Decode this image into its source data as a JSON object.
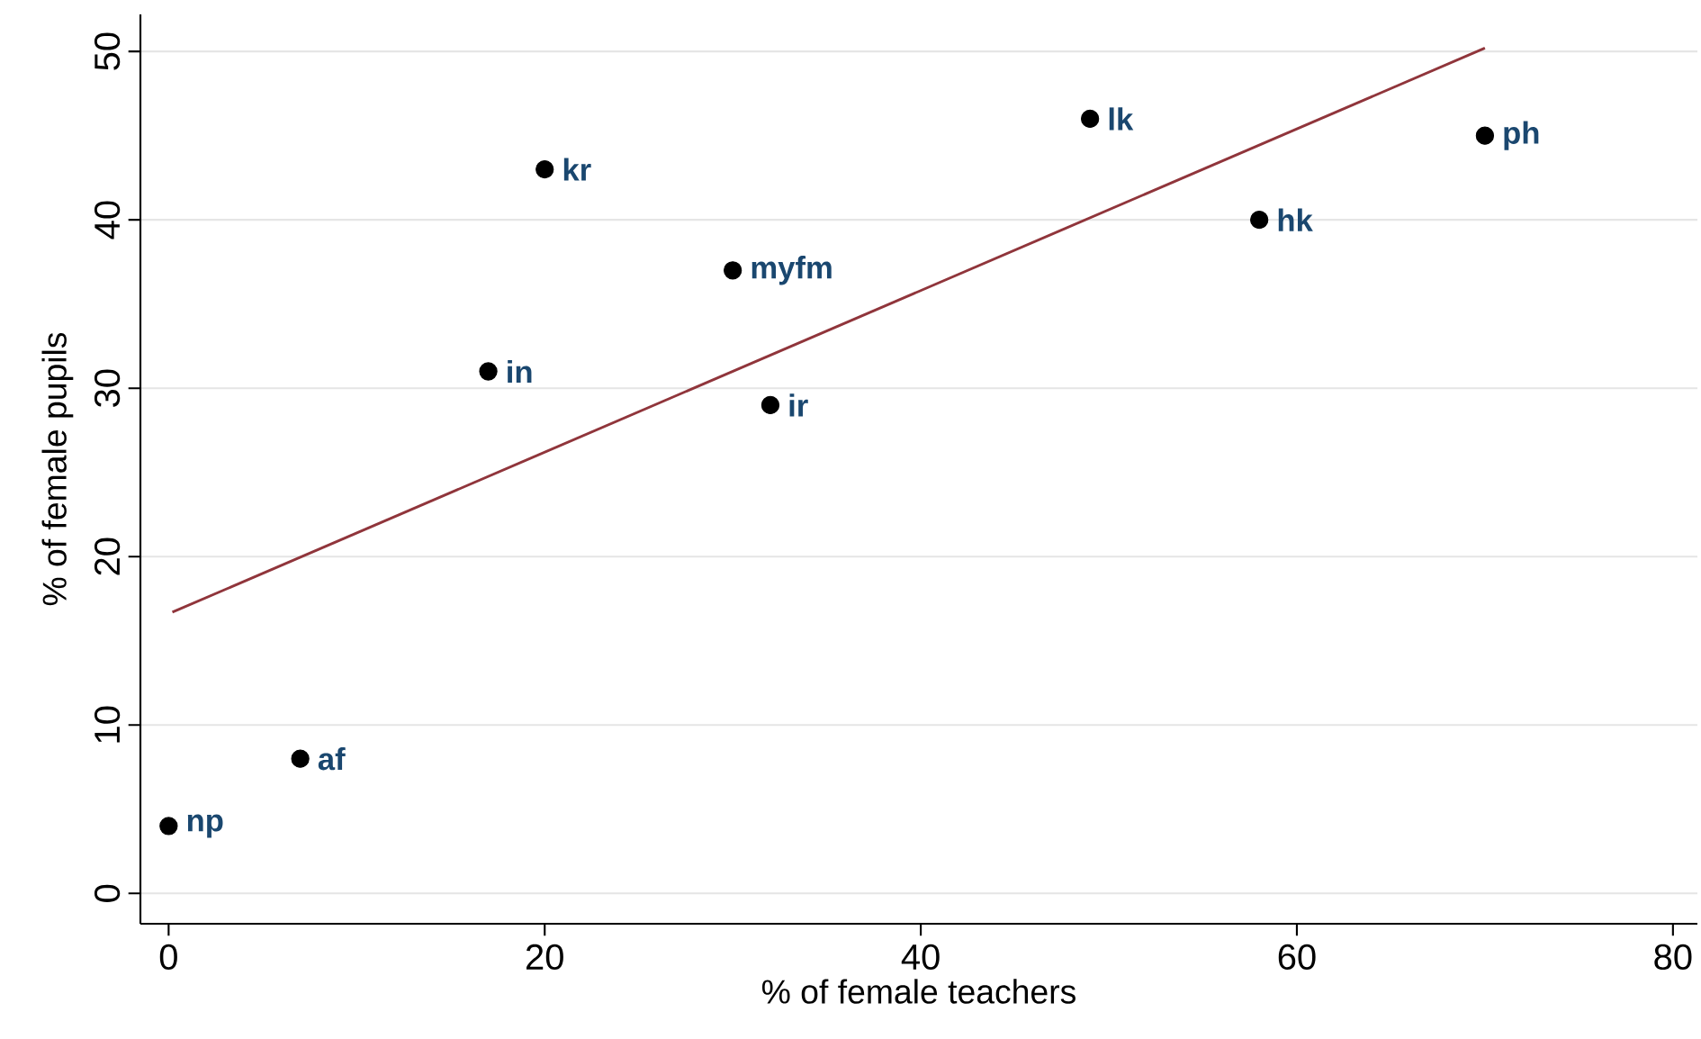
{
  "chart_data": {
    "type": "scatter",
    "xlabel": "% of female teachers",
    "ylabel": "% of female pupils",
    "x": [
      0,
      7,
      17,
      20,
      30,
      32,
      49,
      58,
      70
    ],
    "series": [
      {
        "color": "#000000",
        "marker": "circle",
        "values": [
          4,
          8,
          31,
          43,
          37,
          29,
          46,
          40,
          45
        ]
      },
      {
        "type": "line",
        "color": "#90353b",
        "marker": "none",
        "x": [
          0.2,
          70
        ],
        "values": [
          16.7,
          50.2
        ]
      }
    ],
    "annotations": [
      {
        "text": "np",
        "x": 0,
        "y": 4
      },
      {
        "text": "af",
        "x": 7,
        "y": 8
      },
      {
        "text": "in",
        "x": 17,
        "y": 31
      },
      {
        "text": "kr",
        "x": 20,
        "y": 43
      },
      {
        "text": "myfm",
        "x": 30,
        "y": 37
      },
      {
        "text": "ir",
        "x": 32,
        "y": 29
      },
      {
        "text": "lk",
        "x": 49,
        "y": 46
      },
      {
        "text": "hk",
        "x": 58,
        "y": 40
      },
      {
        "text": "ph",
        "x": 70,
        "y": 45
      }
    ],
    "xlim": [
      -1.5,
      81.3
    ],
    "ylim": [
      -1.8,
      52.2
    ],
    "xticks": [
      0,
      20,
      40,
      60,
      80
    ],
    "yticks": [
      0,
      10,
      20,
      30,
      40,
      50
    ],
    "grid": "y"
  }
}
